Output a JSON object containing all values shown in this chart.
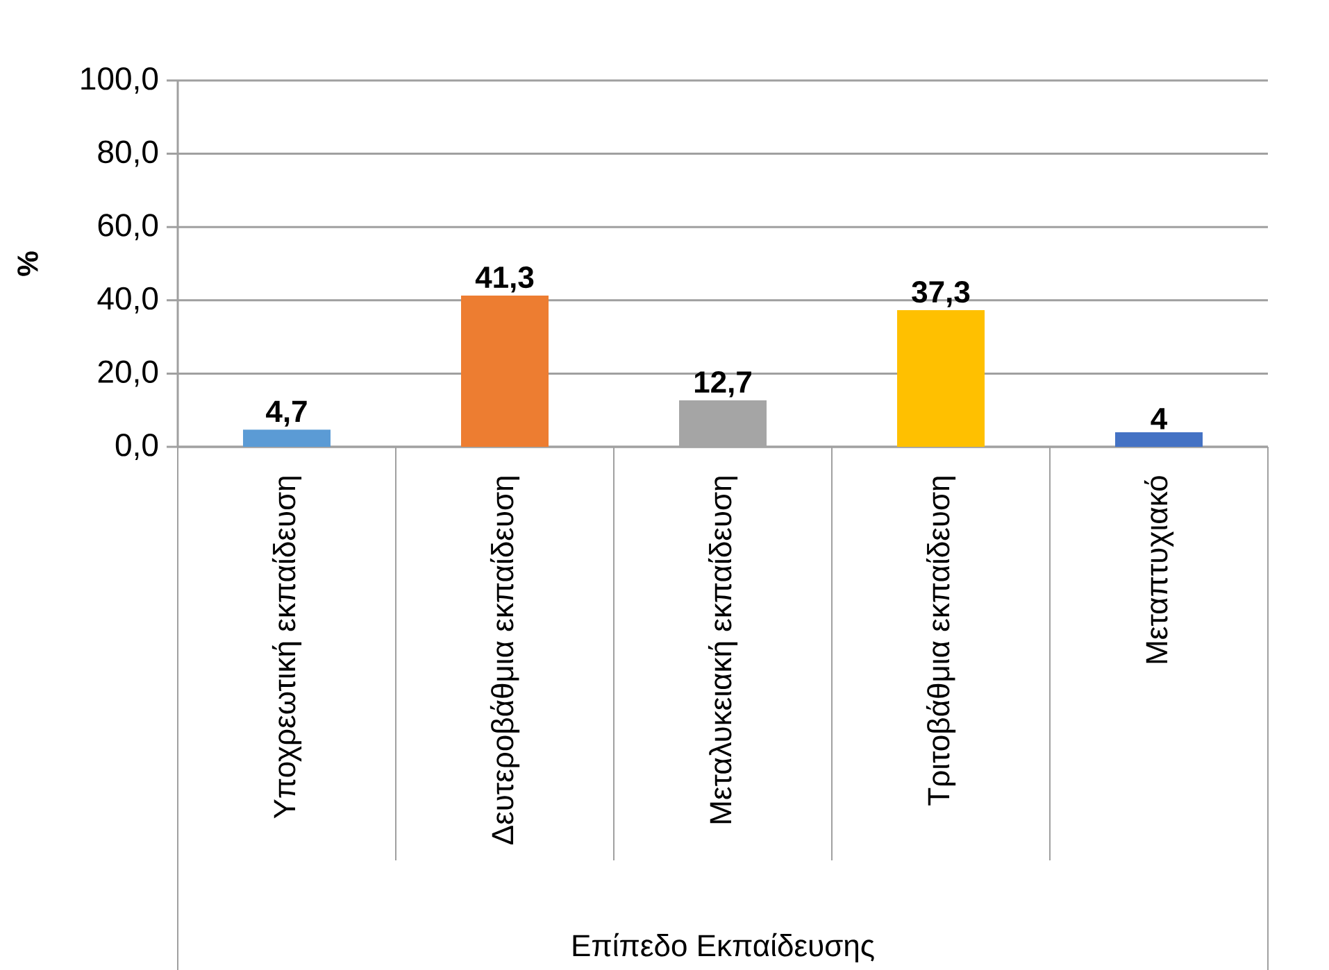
{
  "chart_data": {
    "type": "bar",
    "categories": [
      "Υποχρεωτική εκπαίδευση",
      "Δευτεροβάθμια εκπαίδευση",
      "Μεταλυκειακή εκπαίδευση",
      "Τριτοβάθμια εκπαίδευση",
      "Μεταπτυχιακό"
    ],
    "values": [
      4.7,
      41.3,
      12.7,
      37.3,
      4
    ],
    "value_labels": [
      "4,7",
      "41,3",
      "12,7",
      "37,3",
      "4"
    ],
    "colors": [
      "#5b9bd5",
      "#ed7d31",
      "#a5a5a5",
      "#ffc000",
      "#4472c4"
    ],
    "xlabel": "Επίπεδο Εκπαίδευσης",
    "ylabel": "%",
    "ylim": [
      0,
      100
    ],
    "yticks": [
      {
        "value": 0,
        "label": "0,0"
      },
      {
        "value": 20,
        "label": "20,0"
      },
      {
        "value": 40,
        "label": "40,0"
      },
      {
        "value": 60,
        "label": "60,0"
      },
      {
        "value": 80,
        "label": "80,0"
      },
      {
        "value": 100,
        "label": "100,0"
      }
    ],
    "grid": "y"
  }
}
